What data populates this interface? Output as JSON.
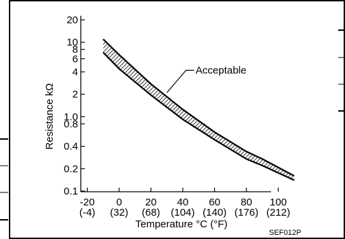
{
  "chart_data": {
    "type": "area",
    "xlabel": "Temperature °C (°F)",
    "ylabel": "Resistance kΩ",
    "x_scale": "linear",
    "y_scale": "log",
    "xlim": [
      -30,
      120
    ],
    "ylim": [
      0.1,
      20
    ],
    "x_ticks": [
      {
        "value": -20,
        "label": "-20",
        "sublabel": "(-4)"
      },
      {
        "value": 0,
        "label": "0",
        "sublabel": "(32)"
      },
      {
        "value": 20,
        "label": "20",
        "sublabel": "(68)"
      },
      {
        "value": 40,
        "label": "40",
        "sublabel": "(104)"
      },
      {
        "value": 60,
        "label": "60",
        "sublabel": "(140)"
      },
      {
        "value": 80,
        "label": "80",
        "sublabel": "(176)"
      },
      {
        "value": 100,
        "label": "100",
        "sublabel": "(212)"
      }
    ],
    "y_ticks": [
      {
        "value": 20,
        "label": "20"
      },
      {
        "value": 10,
        "label": "10"
      },
      {
        "value": 8,
        "label": "8"
      },
      {
        "value": 6,
        "label": "6"
      },
      {
        "value": 4,
        "label": "4"
      },
      {
        "value": 2,
        "label": "2"
      },
      {
        "value": 1.0,
        "label": "1.0"
      },
      {
        "value": 0.8,
        "label": "0.8"
      },
      {
        "value": 0.4,
        "label": "0.4"
      },
      {
        "value": 0.2,
        "label": "0.2"
      },
      {
        "value": 0.1,
        "label": "0.1"
      }
    ],
    "series": [
      {
        "name": "Acceptable",
        "upper": {
          "x": [
            -10,
            0,
            20,
            40,
            60,
            80,
            90,
            110
          ],
          "y": [
            11.0,
            6.8,
            2.75,
            1.25,
            0.62,
            0.34,
            0.27,
            0.16
          ]
        },
        "lower": {
          "x": [
            -10,
            0,
            20,
            40,
            60,
            80,
            90,
            110
          ],
          "y": [
            7.3,
            4.4,
            1.95,
            0.92,
            0.49,
            0.27,
            0.22,
            0.14
          ]
        }
      }
    ],
    "annotations": [
      {
        "text": "Acceptable"
      }
    ],
    "grid": false,
    "figure_code": "SEF012P"
  }
}
